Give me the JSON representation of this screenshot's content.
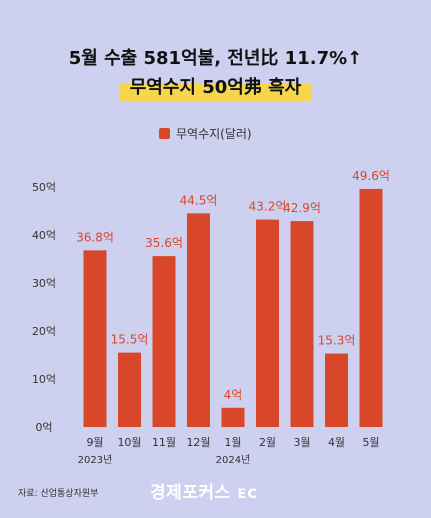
{
  "header": {
    "title_line1": "5월 수출 581억불, 전년比 11.7%↑",
    "title_line2": "무역수지 50억弗 흑자"
  },
  "legend": {
    "label": "무역수지(달러)"
  },
  "footer": {
    "source": "자료: 산업통상자원부",
    "logo": "경제포커스 ᴇᴄ"
  },
  "colors": {
    "bar": "#d9472b",
    "background": "#cdd0ee",
    "highlight": "#f6d64a"
  },
  "chart_data": {
    "type": "bar",
    "categories": [
      "9월",
      "10월",
      "11월",
      "12월",
      "1월",
      "2월",
      "3월",
      "4월",
      "5월"
    ],
    "year_labels": [
      {
        "category_index": 0,
        "label": "2023년"
      },
      {
        "category_index": 4,
        "label": "2024년"
      }
    ],
    "series": [
      {
        "name": "무역수지(달러)",
        "values": [
          36.8,
          15.5,
          35.6,
          44.5,
          4,
          43.2,
          42.9,
          15.3,
          49.6
        ],
        "labels": [
          "36.8억",
          "15.5억",
          "35.6억",
          "44.5억",
          "4억",
          "43.2억",
          "42.9억",
          "15.3억",
          "49.6억"
        ]
      }
    ],
    "ylim": [
      0,
      50
    ],
    "yticks": [
      0,
      10,
      20,
      30,
      40,
      50
    ],
    "ytick_labels": [
      "0억",
      "10억",
      "20억",
      "30억",
      "40억",
      "50억"
    ],
    "grid": false,
    "legend_position": "top-center"
  }
}
